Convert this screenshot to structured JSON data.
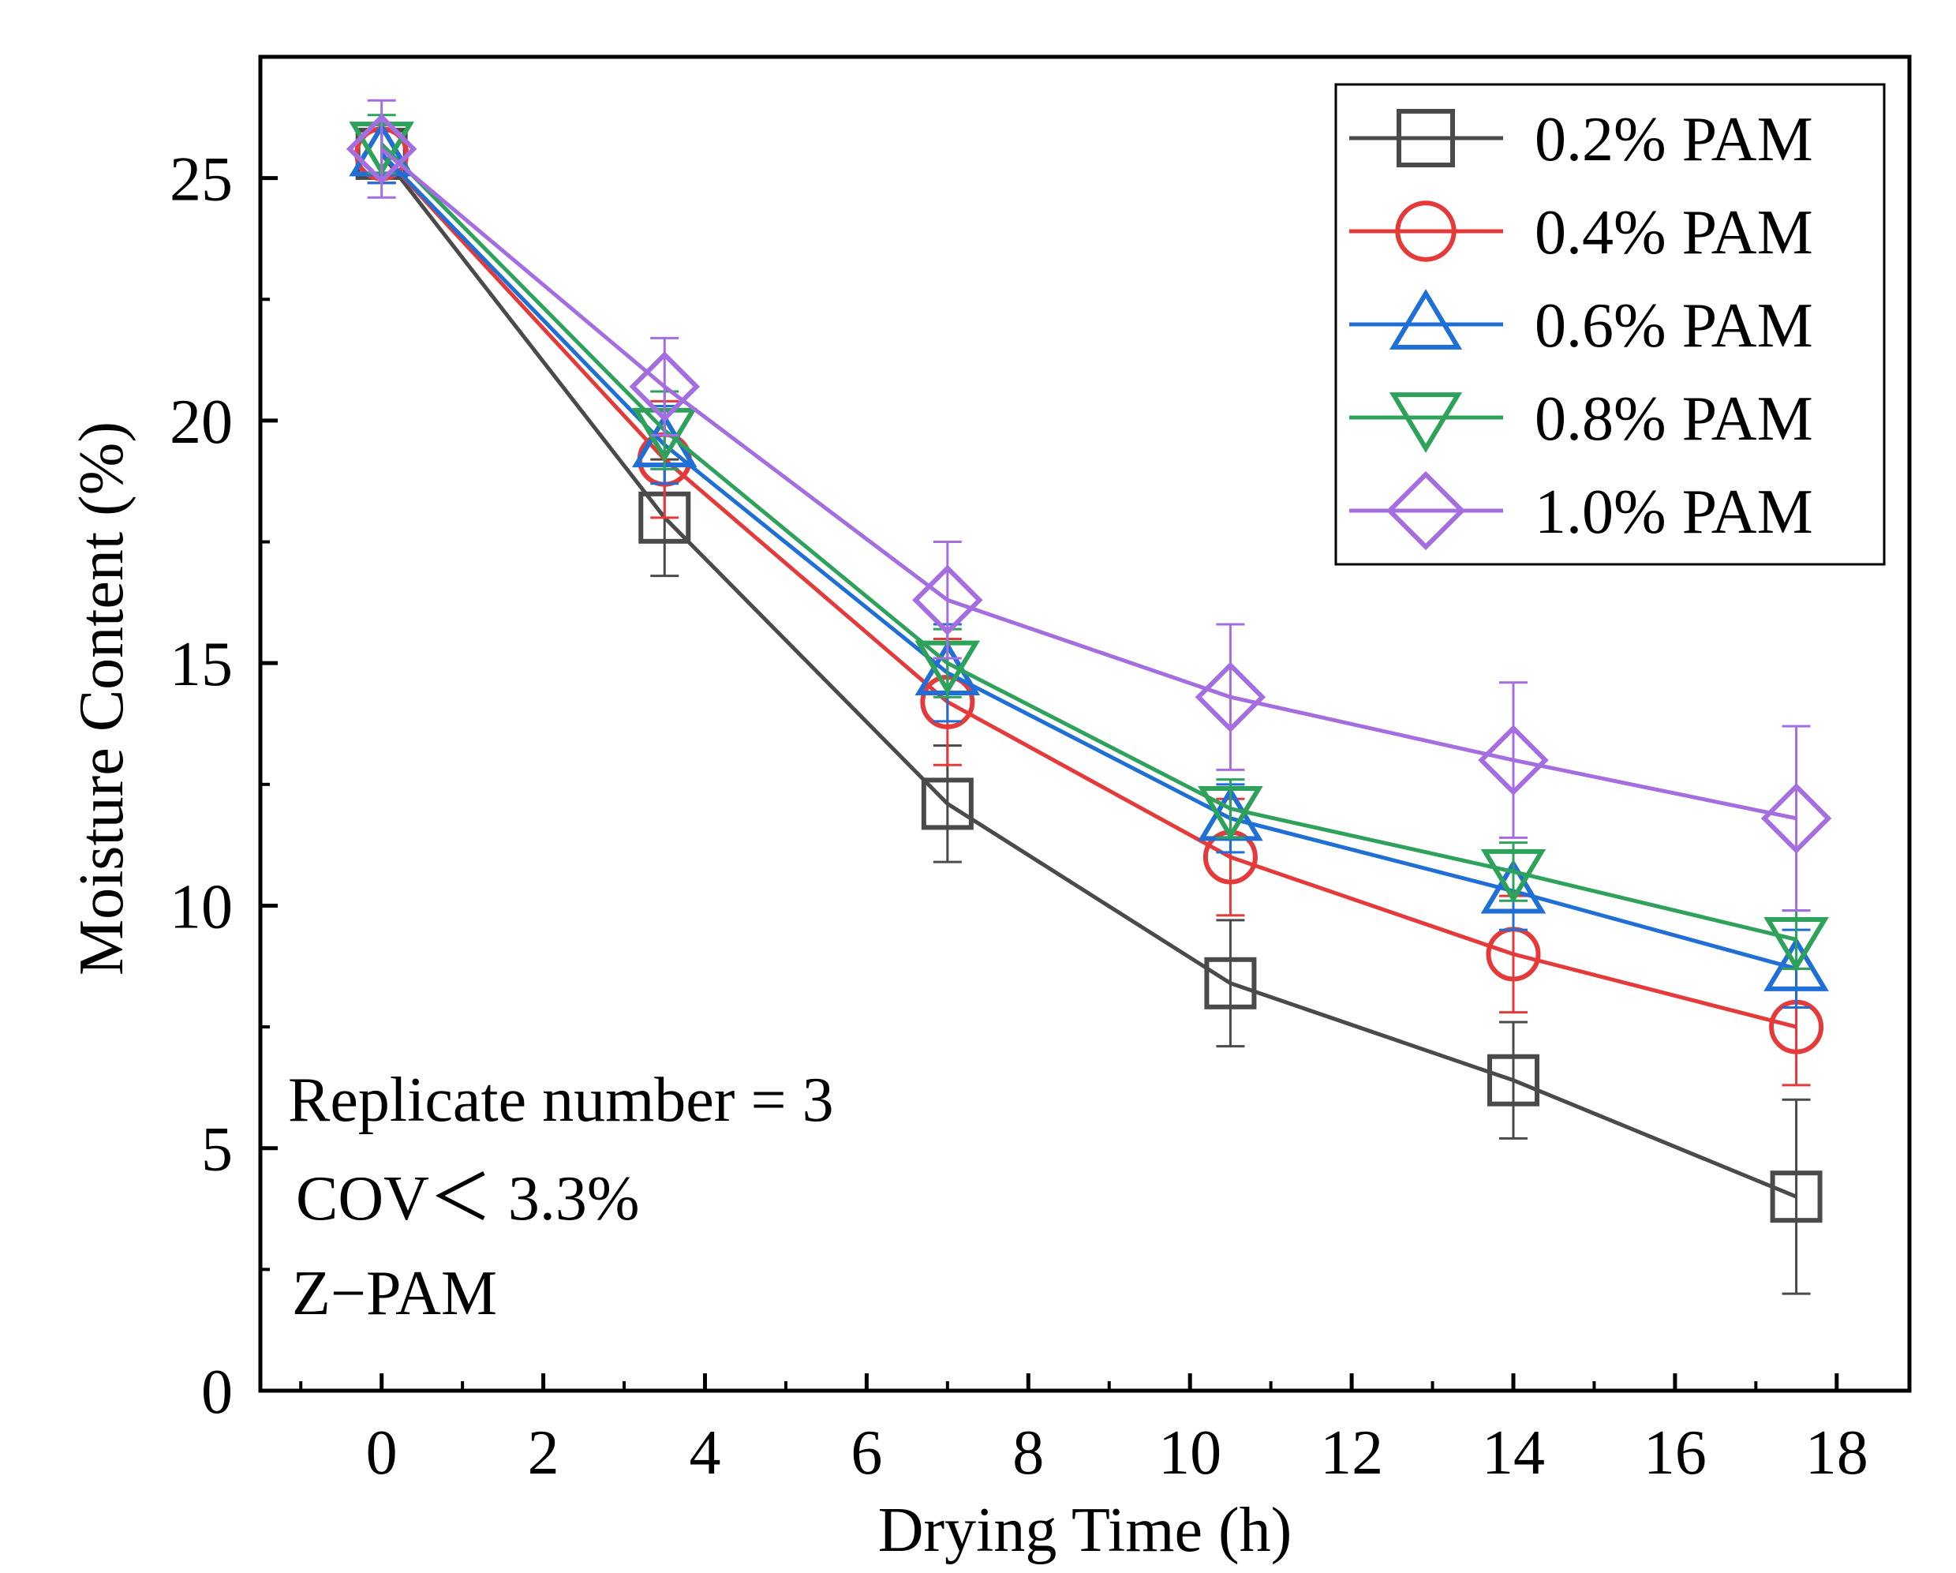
{
  "chart_data": {
    "type": "line",
    "title": "",
    "xlabel": "Drying Time (h)",
    "ylabel": "Moisture Content (%)",
    "xlim": [
      -1.5,
      18.9
    ],
    "ylim": [
      0,
      27.5
    ],
    "xticks": [
      0,
      2,
      4,
      6,
      8,
      10,
      12,
      14,
      16,
      18
    ],
    "yticks": [
      0,
      5,
      10,
      15,
      20,
      25
    ],
    "x": [
      0,
      3.5,
      7,
      10.5,
      14,
      17.5
    ],
    "legend_position": "top-right",
    "series": [
      {
        "name": "0.2% PAM",
        "marker": "square",
        "color": "#4a4a4a",
        "values": [
          25.5,
          18.0,
          12.1,
          8.4,
          6.4,
          4.0
        ],
        "errors": [
          0.6,
          1.2,
          1.2,
          1.3,
          1.2,
          2.0
        ]
      },
      {
        "name": "0.4% PAM",
        "marker": "circle",
        "color": "#e53a3a",
        "values": [
          25.5,
          19.2,
          14.2,
          11.0,
          9.0,
          7.5
        ],
        "errors": [
          0.6,
          1.2,
          1.3,
          1.2,
          1.2,
          1.2
        ]
      },
      {
        "name": "0.6% PAM",
        "marker": "triangle-up",
        "color": "#1f6fd6",
        "values": [
          25.5,
          19.5,
          14.8,
          11.8,
          10.3,
          8.7
        ],
        "errors": [
          0.6,
          0.8,
          1.0,
          0.7,
          0.8,
          0.8
        ]
      },
      {
        "name": "0.8% PAM",
        "marker": "triangle-down",
        "color": "#2ea25a",
        "values": [
          25.7,
          19.8,
          15.0,
          12.0,
          10.7,
          9.3
        ],
        "errors": [
          0.6,
          0.8,
          0.7,
          0.6,
          0.6,
          0.6
        ]
      },
      {
        "name": "1.0% PAM",
        "marker": "diamond",
        "color": "#a56ee0",
        "values": [
          25.6,
          20.7,
          16.3,
          14.3,
          13.0,
          11.8
        ],
        "errors": [
          1.0,
          1.0,
          1.2,
          1.5,
          1.6,
          1.9
        ]
      }
    ],
    "annotations": [
      "Replicate number = 3",
      "COV＜ 3.3%",
      "Z−PAM"
    ]
  }
}
